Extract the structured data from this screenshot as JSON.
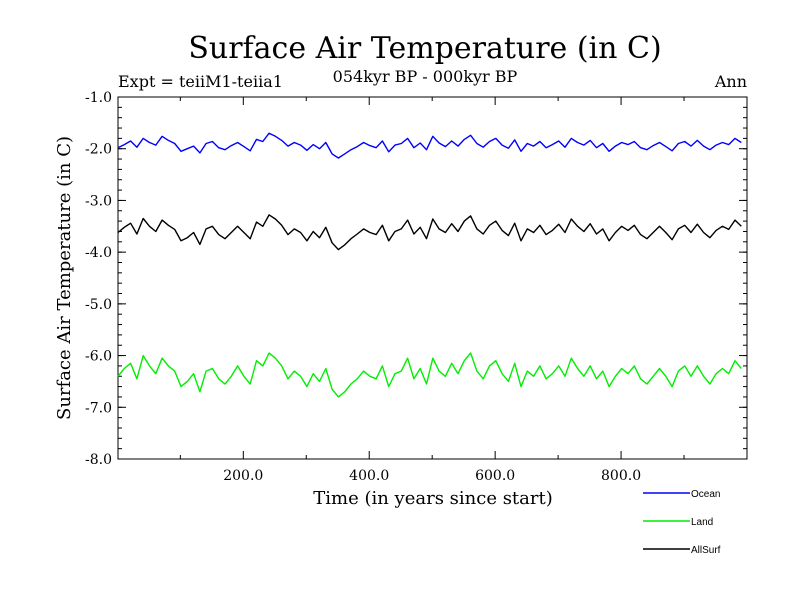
{
  "chart_data": {
    "type": "line",
    "title": "Surface Air Temperature (in C)",
    "subtitle": "054kyr BP - 000kyr BP",
    "expt_label": "Expt = teiiM1-teiia1",
    "season_label": "Ann",
    "xlabel": "Time (in years since start)",
    "ylabel": "Surface Air Temperature (in C)",
    "xlim": [
      1,
      1000
    ],
    "ylim": [
      -8.0,
      -1.0
    ],
    "x_ticks": [
      200,
      400,
      600,
      800
    ],
    "x_tick_labels": [
      "200.0",
      "400.0",
      "600.0",
      "800.0"
    ],
    "y_ticks": [
      -1.0,
      -2.0,
      -3.0,
      -4.0,
      -5.0,
      -6.0,
      -7.0,
      -8.0
    ],
    "y_tick_labels": [
      "-1.0",
      "-2.0",
      "-3.0",
      "-4.0",
      "-5.0",
      "-6.0",
      "-7.0",
      "-8.0"
    ],
    "grid": false,
    "legend_position": "bottom-right",
    "series": [
      {
        "name": "Ocean",
        "color": "#0000ff",
        "x_step": 10,
        "values": [
          -1.98,
          -1.92,
          -1.85,
          -1.97,
          -1.8,
          -1.88,
          -1.93,
          -1.76,
          -1.84,
          -1.9,
          -2.05,
          -2.0,
          -1.95,
          -2.08,
          -1.9,
          -1.86,
          -1.98,
          -2.02,
          -1.94,
          -1.88,
          -1.96,
          -2.04,
          -1.82,
          -1.86,
          -1.7,
          -1.76,
          -1.84,
          -1.95,
          -1.88,
          -1.93,
          -2.03,
          -1.92,
          -2.0,
          -1.88,
          -2.1,
          -2.18,
          -2.1,
          -2.02,
          -1.96,
          -1.88,
          -1.94,
          -1.98,
          -1.85,
          -2.06,
          -1.93,
          -1.9,
          -1.8,
          -1.98,
          -1.89,
          -2.02,
          -1.76,
          -1.89,
          -1.96,
          -1.85,
          -1.95,
          -1.82,
          -1.74,
          -1.9,
          -1.97,
          -1.86,
          -1.8,
          -1.93,
          -1.99,
          -1.83,
          -2.05,
          -1.9,
          -1.95,
          -1.86,
          -1.98,
          -1.92,
          -1.85,
          -1.97,
          -1.8,
          -1.88,
          -1.93,
          -1.84,
          -1.98,
          -1.9,
          -2.05,
          -1.95,
          -1.88,
          -1.92,
          -1.86,
          -1.98,
          -2.02,
          -1.94,
          -1.88,
          -1.96,
          -2.04,
          -1.9,
          -1.86,
          -1.95,
          -1.84,
          -1.95,
          -2.02,
          -1.93,
          -1.88,
          -1.92,
          -1.8,
          -1.88
        ]
      },
      {
        "name": "Land",
        "color": "#00ee00",
        "x_step": 10,
        "values": [
          -6.4,
          -6.25,
          -6.15,
          -6.45,
          -6.0,
          -6.2,
          -6.35,
          -6.05,
          -6.2,
          -6.3,
          -6.6,
          -6.5,
          -6.35,
          -6.7,
          -6.3,
          -6.25,
          -6.45,
          -6.55,
          -6.4,
          -6.2,
          -6.4,
          -6.55,
          -6.1,
          -6.2,
          -5.95,
          -6.05,
          -6.2,
          -6.45,
          -6.3,
          -6.4,
          -6.6,
          -6.35,
          -6.5,
          -6.25,
          -6.65,
          -6.8,
          -6.7,
          -6.55,
          -6.45,
          -6.3,
          -6.4,
          -6.45,
          -6.2,
          -6.6,
          -6.35,
          -6.3,
          -6.05,
          -6.45,
          -6.25,
          -6.55,
          -6.05,
          -6.3,
          -6.4,
          -6.15,
          -6.35,
          -6.1,
          -5.95,
          -6.3,
          -6.45,
          -6.2,
          -6.1,
          -6.35,
          -6.5,
          -6.15,
          -6.6,
          -6.3,
          -6.4,
          -6.2,
          -6.45,
          -6.35,
          -6.2,
          -6.4,
          -6.05,
          -6.25,
          -6.4,
          -6.2,
          -6.45,
          -6.3,
          -6.6,
          -6.4,
          -6.25,
          -6.35,
          -6.2,
          -6.45,
          -6.55,
          -6.4,
          -6.25,
          -6.4,
          -6.6,
          -6.3,
          -6.2,
          -6.4,
          -6.2,
          -6.4,
          -6.55,
          -6.35,
          -6.25,
          -6.35,
          -6.1,
          -6.25
        ]
      },
      {
        "name": "AllSurf",
        "color": "#000000",
        "x_step": 10,
        "values": [
          -3.62,
          -3.52,
          -3.44,
          -3.65,
          -3.35,
          -3.5,
          -3.6,
          -3.38,
          -3.48,
          -3.56,
          -3.78,
          -3.72,
          -3.62,
          -3.85,
          -3.55,
          -3.5,
          -3.66,
          -3.74,
          -3.62,
          -3.5,
          -3.62,
          -3.74,
          -3.42,
          -3.5,
          -3.28,
          -3.36,
          -3.48,
          -3.66,
          -3.55,
          -3.62,
          -3.78,
          -3.6,
          -3.72,
          -3.52,
          -3.82,
          -3.95,
          -3.86,
          -3.74,
          -3.65,
          -3.55,
          -3.62,
          -3.66,
          -3.48,
          -3.78,
          -3.6,
          -3.55,
          -3.38,
          -3.65,
          -3.52,
          -3.74,
          -3.36,
          -3.55,
          -3.62,
          -3.45,
          -3.6,
          -3.4,
          -3.3,
          -3.55,
          -3.65,
          -3.48,
          -3.4,
          -3.58,
          -3.68,
          -3.44,
          -3.78,
          -3.55,
          -3.62,
          -3.48,
          -3.66,
          -3.58,
          -3.46,
          -3.62,
          -3.36,
          -3.5,
          -3.6,
          -3.45,
          -3.65,
          -3.55,
          -3.78,
          -3.62,
          -3.5,
          -3.58,
          -3.48,
          -3.66,
          -3.74,
          -3.62,
          -3.5,
          -3.62,
          -3.76,
          -3.55,
          -3.48,
          -3.62,
          -3.46,
          -3.62,
          -3.72,
          -3.58,
          -3.5,
          -3.56,
          -3.38,
          -3.5
        ]
      }
    ]
  }
}
